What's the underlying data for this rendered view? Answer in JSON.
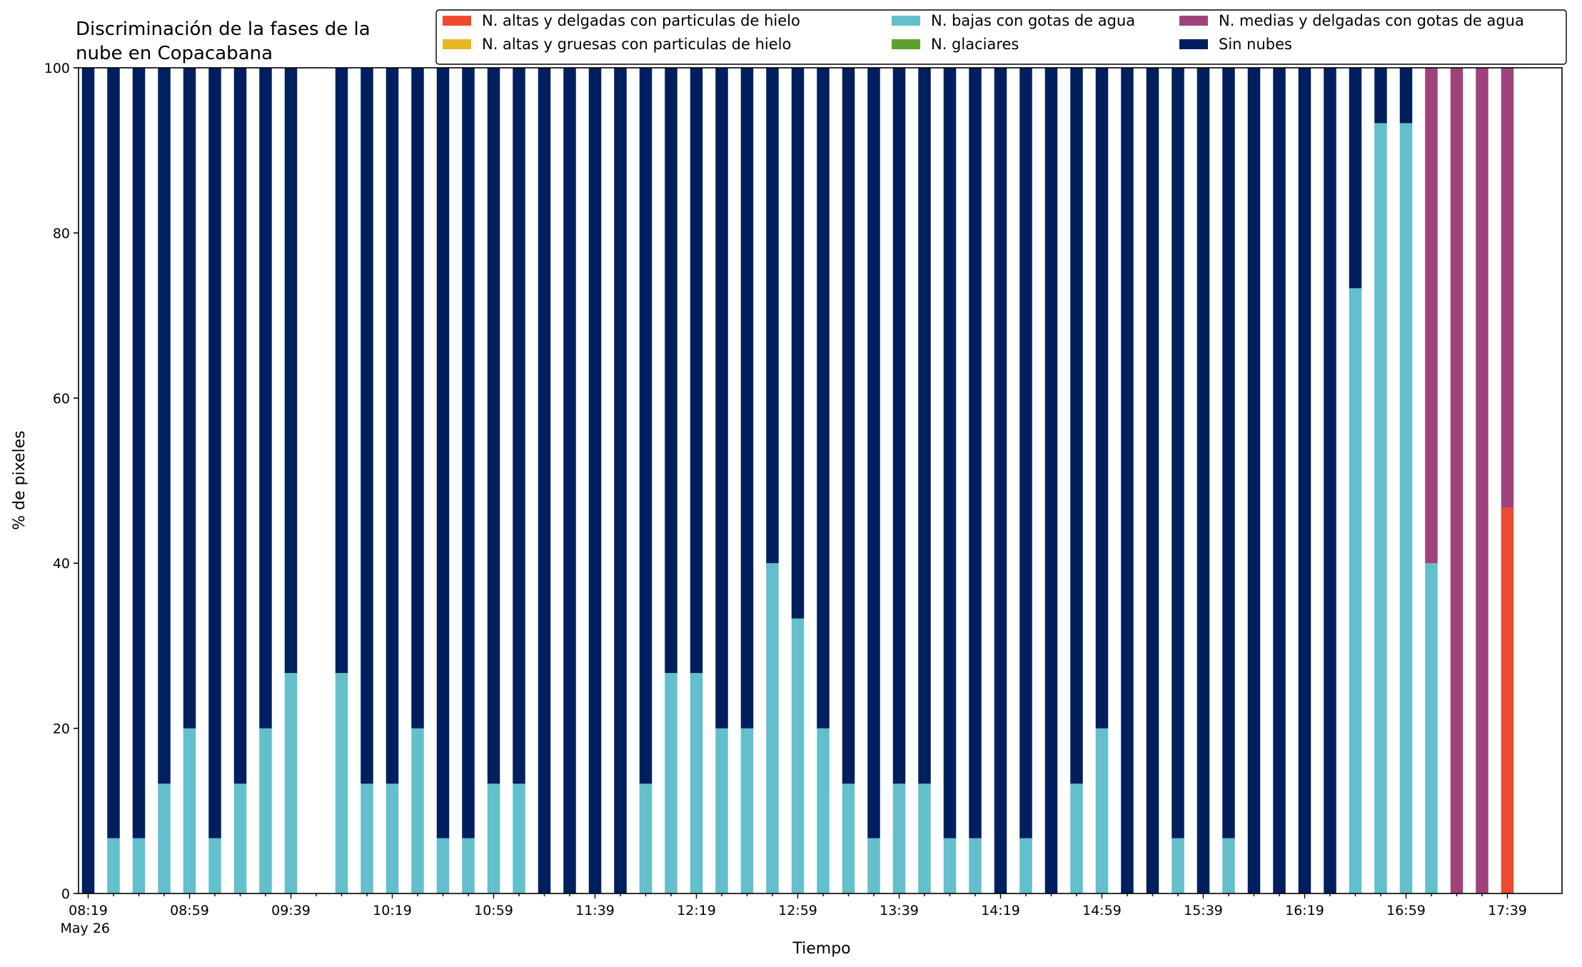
{
  "chart_data": {
    "type": "bar",
    "stacked": true,
    "title": "Discriminación de la fases de la\nnube en Copacabana",
    "xlabel": "Tiempo",
    "ylabel": "% de pixeles",
    "ylim": [
      0,
      100
    ],
    "yticks": [
      "0",
      "20",
      "40",
      "60",
      "80",
      "100"
    ],
    "xtick_labels": [
      "08:19",
      "08:59",
      "09:39",
      "10:19",
      "10:59",
      "11:39",
      "12:19",
      "12:59",
      "13:39",
      "14:19",
      "14:59",
      "15:39",
      "16:19",
      "16:59",
      "17:39"
    ],
    "xtick_sublabel": "May 26",
    "grid": false,
    "legend_position": "top-right",
    "legend": [
      {
        "key": "ice_thin",
        "label": "N. altas y delgadas con particulas de hielo"
      },
      {
        "key": "ice_thick",
        "label": "N. altas y gruesas con particulas de hielo"
      },
      {
        "key": "low_water",
        "label": "N. bajas con gotas de agua"
      },
      {
        "key": "glacier",
        "label": "N. glaciares"
      },
      {
        "key": "mid_water",
        "label": "N. medias y delgadas con gotas de agua"
      },
      {
        "key": "clear",
        "label": "Sin nubes"
      }
    ],
    "colors": {
      "ice_thin": "#ee4a2c",
      "ice_thick": "#e6b820",
      "low_water": "#63bfcb",
      "glacier": "#5da02e",
      "mid_water": "#a0427a",
      "clear": "#001f5e"
    },
    "categories": [
      "08:19",
      "08:29",
      "08:39",
      "08:49",
      "08:59",
      "09:09",
      "09:19",
      "09:29",
      "09:39",
      "09:49",
      "09:59",
      "10:09",
      "10:19",
      "10:29",
      "10:39",
      "10:49",
      "10:59",
      "11:09",
      "11:19",
      "11:29",
      "11:39",
      "11:49",
      "11:59",
      "12:09",
      "12:19",
      "12:29",
      "12:39",
      "12:49",
      "12:59",
      "13:09",
      "13:19",
      "13:29",
      "13:39",
      "13:49",
      "13:59",
      "14:09",
      "14:19",
      "14:29",
      "14:39",
      "14:49",
      "14:59",
      "15:09",
      "15:19",
      "15:29",
      "15:39",
      "15:49",
      "15:59",
      "16:09",
      "16:19",
      "16:29",
      "16:39",
      "16:49",
      "16:59",
      "17:09",
      "17:19",
      "17:29",
      "17:39"
    ],
    "series": [
      {
        "key": "ice_thin",
        "name": "N. altas y delgadas con particulas de hielo",
        "values": [
          0,
          0,
          0,
          0,
          0,
          0,
          0,
          0,
          0,
          0,
          0,
          0,
          0,
          0,
          0,
          0,
          0,
          0,
          0,
          0,
          0,
          0,
          0,
          0,
          0,
          0,
          0,
          0,
          0,
          0,
          0,
          0,
          0,
          0,
          0,
          0,
          0,
          0,
          0,
          0,
          0,
          0,
          0,
          0,
          0,
          0,
          0,
          0,
          0,
          0,
          0,
          0,
          0,
          0,
          0,
          0,
          46.7
        ]
      },
      {
        "key": "ice_thick",
        "name": "N. altas y gruesas con particulas de hielo",
        "values": [
          0,
          0,
          0,
          0,
          0,
          0,
          0,
          0,
          0,
          0,
          0,
          0,
          0,
          0,
          0,
          0,
          0,
          0,
          0,
          0,
          0,
          0,
          0,
          0,
          0,
          0,
          0,
          0,
          0,
          0,
          0,
          0,
          0,
          0,
          0,
          0,
          0,
          0,
          0,
          0,
          0,
          0,
          0,
          0,
          0,
          0,
          0,
          0,
          0,
          0,
          0,
          0,
          0,
          0,
          0,
          0,
          0
        ]
      },
      {
        "key": "low_water",
        "name": "N. bajas con gotas de agua",
        "values": [
          0,
          6.7,
          6.7,
          13.3,
          20,
          6.7,
          13.3,
          20,
          26.7,
          0,
          26.7,
          13.3,
          13.3,
          20,
          6.7,
          6.7,
          13.3,
          13.3,
          0,
          0,
          0,
          0,
          13.3,
          26.7,
          26.7,
          20,
          20,
          40,
          33.3,
          20,
          13.3,
          6.7,
          13.3,
          13.3,
          6.7,
          6.7,
          0,
          6.7,
          0,
          13.3,
          20,
          0,
          0,
          6.7,
          0,
          6.7,
          0,
          0,
          0,
          0,
          73.3,
          93.3,
          93.3,
          40,
          0,
          0,
          0
        ]
      },
      {
        "key": "glacier",
        "name": "N. glaciares",
        "values": [
          0,
          0,
          0,
          0,
          0,
          0,
          0,
          0,
          0,
          0,
          0,
          0,
          0,
          0,
          0,
          0,
          0,
          0,
          0,
          0,
          0,
          0,
          0,
          0,
          0,
          0,
          0,
          0,
          0,
          0,
          0,
          0,
          0,
          0,
          0,
          0,
          0,
          0,
          0,
          0,
          0,
          0,
          0,
          0,
          0,
          0,
          0,
          0,
          0,
          0,
          0,
          0,
          0,
          0,
          0,
          0,
          0
        ]
      },
      {
        "key": "mid_water",
        "name": "N. medias y delgadas con gotas de agua",
        "values": [
          0,
          0,
          0,
          0,
          0,
          0,
          0,
          0,
          0,
          0,
          0,
          0,
          0,
          0,
          0,
          0,
          0,
          0,
          0,
          0,
          0,
          0,
          0,
          0,
          0,
          0,
          0,
          0,
          0,
          0,
          0,
          0,
          0,
          0,
          0,
          0,
          0,
          0,
          0,
          0,
          0,
          0,
          0,
          0,
          0,
          0,
          0,
          0,
          0,
          0,
          0,
          0,
          0,
          60,
          100,
          100,
          53.3
        ]
      },
      {
        "key": "clear",
        "name": "Sin nubes",
        "values": [
          100,
          93.3,
          93.3,
          86.7,
          80,
          93.3,
          86.7,
          80,
          73.3,
          0,
          73.3,
          86.7,
          86.7,
          80,
          93.3,
          93.3,
          86.7,
          86.7,
          100,
          100,
          100,
          100,
          86.7,
          73.3,
          73.3,
          80,
          80,
          60,
          66.7,
          80,
          86.7,
          93.3,
          86.7,
          86.7,
          93.3,
          93.3,
          100,
          93.3,
          100,
          86.7,
          80,
          100,
          100,
          93.3,
          100,
          93.3,
          100,
          100,
          100,
          100,
          26.7,
          6.7,
          6.7,
          0,
          0,
          0,
          0
        ]
      }
    ]
  }
}
